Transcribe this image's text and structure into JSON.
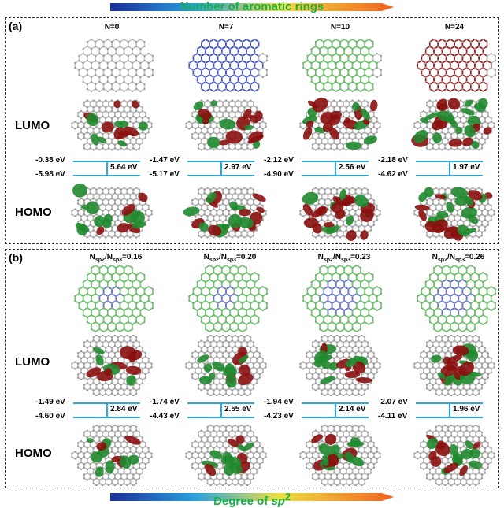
{
  "header": {
    "title": "Number of aromatic rings"
  },
  "footer": {
    "title_prefix": "Degree of ",
    "title_sp": "sp",
    "title_sup": "2"
  },
  "panel_a": {
    "label": "(a)",
    "lumo_label": "LUMO",
    "homo_label": "HOMO",
    "columns": [
      {
        "title": "N=0",
        "lumo": "-0.38 eV",
        "homo": "-5.98 eV",
        "gap": "5.64 eV",
        "color": "#c8c8c8"
      },
      {
        "title": "N=7",
        "lumo": "-1.47 eV",
        "homo": "-5.17 eV",
        "gap": "2.97 eV",
        "color": "#3a4fd8"
      },
      {
        "title": "N=10",
        "lumo": "-2.12 eV",
        "homo": "-4.90 eV",
        "gap": "2.56 eV",
        "color": "#5fcf5f"
      },
      {
        "title": "N=24",
        "lumo": "-2.18 eV",
        "homo": "-4.62 eV",
        "gap": "1.97 eV",
        "color": "#9b1a1a"
      }
    ]
  },
  "panel_b": {
    "label": "(b)",
    "lumo_label": "LUMO",
    "homo_label": "HOMO",
    "columns": [
      {
        "ratio": "=0.16",
        "lumo": "-1.49 eV",
        "homo": "-4.60 eV",
        "gap": "2.84 eV"
      },
      {
        "ratio": "=0.20",
        "lumo": "-1.74 eV",
        "homo": "-4.43 eV",
        "gap": "2.55 eV"
      },
      {
        "ratio": "=0.23",
        "lumo": "-1.94 eV",
        "homo": "-4.23 eV",
        "gap": "2.14 eV"
      },
      {
        "ratio": "=0.26",
        "lumo": "-2.07 eV",
        "homo": "-4.11 eV",
        "gap": "1.96 eV"
      }
    ],
    "ratio_n": "N",
    "ratio_sub1": "sp2",
    "ratio_slash": "/N",
    "ratio_sub2": "sp3"
  },
  "colors": {
    "level_line": "#29a8e0",
    "orbital_red": "#8b1010",
    "orbital_green": "#1f8a2e",
    "sp2_blue": "#5f6fd8",
    "sp3_green": "#5fcf5f"
  }
}
